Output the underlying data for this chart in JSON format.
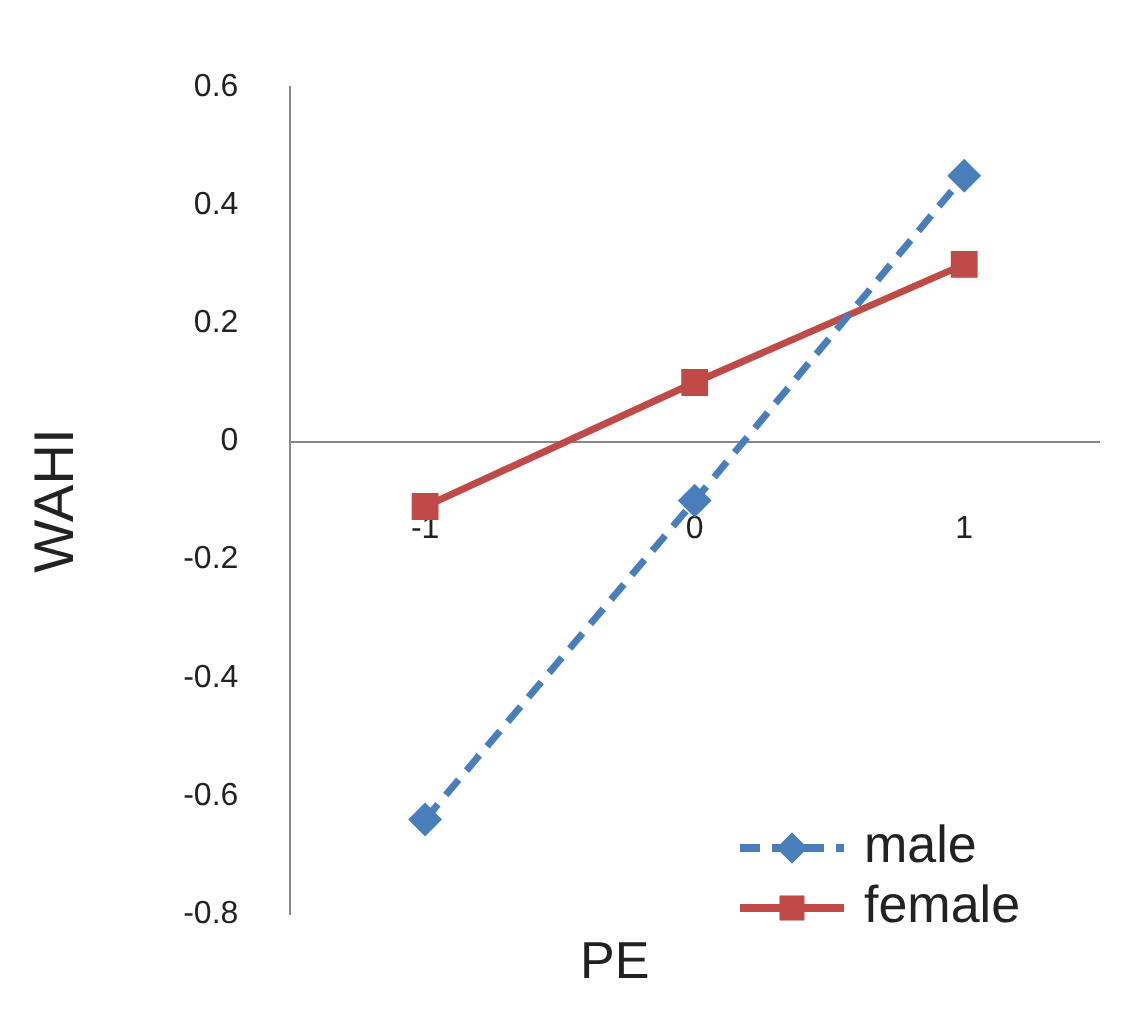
{
  "chart_data": {
    "type": "line",
    "xlabel": "PE",
    "ylabel": "WAHI",
    "categories": [
      "-1",
      "0",
      "1"
    ],
    "series": [
      {
        "name": "male",
        "color": "#4a7ebb",
        "values": [
          -0.64,
          -0.1,
          0.45
        ],
        "marker": "diamond",
        "line_style": "dashed"
      },
      {
        "name": "female",
        "color": "#be4b48",
        "values": [
          -0.11,
          0.1,
          0.3
        ],
        "marker": "square",
        "line_style": "solid"
      }
    ],
    "ylim": [
      -0.8,
      0.6
    ],
    "yticks": [
      -0.8,
      -0.6,
      -0.4,
      -0.2,
      0,
      0.2,
      0.4,
      0.6
    ],
    "grid": false,
    "legend": "bottom right"
  }
}
